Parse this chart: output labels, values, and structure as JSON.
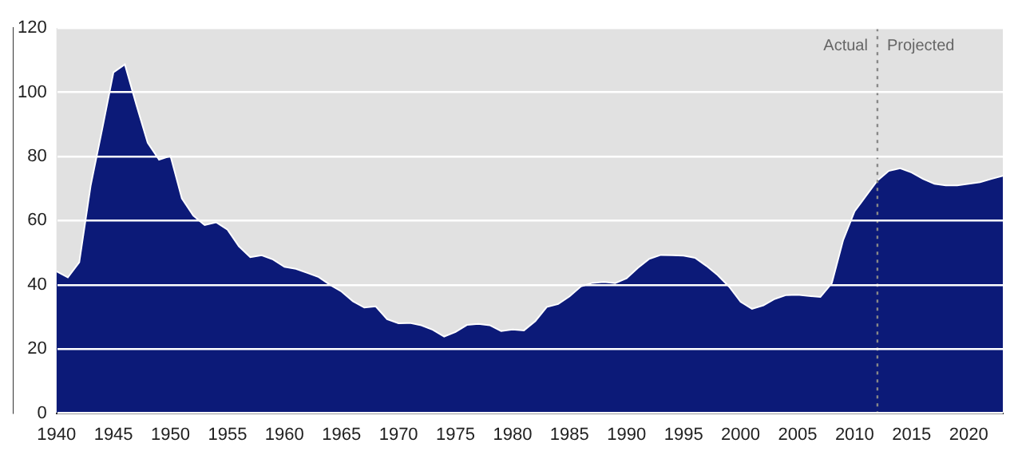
{
  "chart_data": {
    "type": "area",
    "x": [
      1940,
      1941,
      1942,
      1943,
      1944,
      1945,
      1946,
      1947,
      1948,
      1949,
      1950,
      1951,
      1952,
      1953,
      1954,
      1955,
      1956,
      1957,
      1958,
      1959,
      1960,
      1961,
      1962,
      1963,
      1964,
      1965,
      1966,
      1967,
      1968,
      1969,
      1970,
      1971,
      1972,
      1973,
      1974,
      1975,
      1976,
      1977,
      1978,
      1979,
      1980,
      1981,
      1982,
      1983,
      1984,
      1985,
      1986,
      1987,
      1988,
      1989,
      1990,
      1991,
      1992,
      1993,
      1994,
      1995,
      1996,
      1997,
      1998,
      1999,
      2000,
      2001,
      2002,
      2003,
      2004,
      2005,
      2006,
      2007,
      2008,
      2009,
      2010,
      2011,
      2012,
      2013,
      2014,
      2015,
      2016,
      2017,
      2018,
      2019,
      2020,
      2021,
      2022,
      2023
    ],
    "values": [
      44.2,
      42.3,
      47.0,
      70.9,
      88.3,
      106.2,
      108.7,
      96.2,
      84.3,
      79.0,
      80.2,
      66.9,
      61.6,
      58.6,
      59.5,
      57.2,
      52.0,
      48.6,
      49.2,
      47.9,
      45.6,
      45.0,
      43.7,
      42.4,
      40.0,
      37.9,
      34.9,
      32.9,
      33.3,
      29.3,
      28.0,
      28.1,
      27.4,
      26.0,
      23.9,
      25.3,
      27.5,
      27.8,
      27.4,
      25.6,
      26.1,
      25.8,
      28.7,
      33.1,
      34.0,
      36.4,
      39.5,
      40.6,
      40.9,
      40.5,
      42.0,
      45.3,
      48.1,
      49.3,
      49.2,
      49.1,
      48.4,
      45.9,
      43.0,
      39.4,
      34.7,
      32.5,
      33.6,
      35.6,
      36.8,
      36.9,
      36.5,
      36.2,
      40.5,
      54.0,
      62.9,
      67.7,
      72.5,
      75.5,
      76.3,
      75.0,
      73.0,
      71.5,
      71.0,
      71.0,
      71.5,
      72.0,
      73.0,
      74.0
    ],
    "color": "#0c1a78",
    "xlim": [
      1940,
      2023
    ],
    "xticks": [
      1940,
      1945,
      1950,
      1955,
      1960,
      1965,
      1970,
      1975,
      1980,
      1985,
      1990,
      1995,
      2000,
      2005,
      2010,
      2015,
      2020
    ],
    "ylim": [
      0,
      120
    ],
    "yticks": [
      0,
      20,
      40,
      60,
      80,
      100,
      120
    ],
    "grid": "y",
    "ref_lines": [
      {
        "axis": "x",
        "value": 2012,
        "color": "#888888",
        "line_style": "dotted"
      }
    ],
    "annotations": [
      "Actual",
      "Projected"
    ]
  }
}
